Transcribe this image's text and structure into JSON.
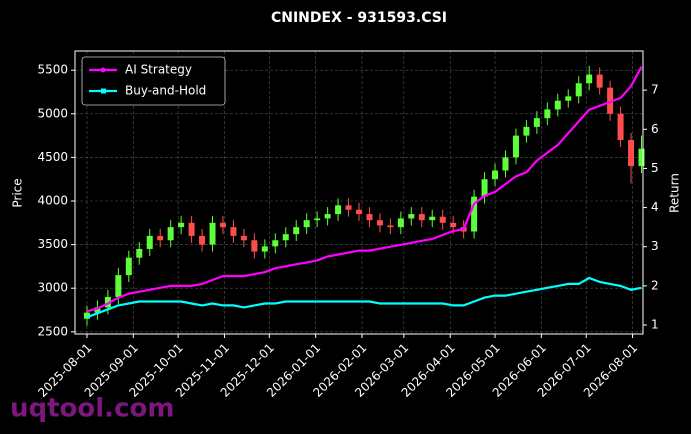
{
  "chart_data": {
    "type": "candlestick",
    "title": "CNINDEX - 931593.CSI",
    "ylabel": "Price",
    "y2label": "Return",
    "x": [
      "2025-08-01",
      "2025-08-08",
      "2025-08-15",
      "2025-08-22",
      "2025-08-29",
      "2025-09-05",
      "2025-09-12",
      "2025-09-19",
      "2025-09-26",
      "2025-10-03",
      "2025-10-10",
      "2025-10-17",
      "2025-10-24",
      "2025-10-31",
      "2025-11-07",
      "2025-11-14",
      "2025-11-21",
      "2025-11-28",
      "2025-12-05",
      "2025-12-12",
      "2025-12-19",
      "2025-12-26",
      "2026-01-02",
      "2026-01-09",
      "2026-01-16",
      "2026-01-23",
      "2026-01-30",
      "2026-02-06",
      "2026-02-13",
      "2026-02-20",
      "2026-02-27",
      "2026-03-06",
      "2026-03-13",
      "2026-03-20",
      "2026-03-27",
      "2026-04-03",
      "2026-04-10",
      "2026-04-17",
      "2026-04-24",
      "2026-05-01",
      "2026-05-08",
      "2026-05-15",
      "2026-05-22",
      "2026-05-29",
      "2026-06-05",
      "2026-06-12",
      "2026-06-19",
      "2026-06-26",
      "2026-07-03",
      "2026-07-10",
      "2026-07-17",
      "2026-07-24",
      "2026-07-31",
      "2026-08-07"
    ],
    "open": [
      2650,
      2720,
      2780,
      2900,
      3150,
      3350,
      3450,
      3600,
      3550,
      3700,
      3750,
      3600,
      3500,
      3750,
      3700,
      3600,
      3550,
      3420,
      3480,
      3550,
      3620,
      3700,
      3780,
      3800,
      3850,
      3950,
      3900,
      3850,
      3780,
      3720,
      3700,
      3800,
      3850,
      3780,
      3820,
      3750,
      3700,
      3650,
      4050,
      4250,
      4350,
      4500,
      4750,
      4850,
      4950,
      5050,
      5150,
      5200,
      5350,
      5450,
      5300,
      5000,
      4700,
      4400
    ],
    "high": [
      2800,
      2860,
      2980,
      3230,
      3430,
      3530,
      3680,
      3680,
      3780,
      3830,
      3830,
      3680,
      3830,
      3830,
      3780,
      3680,
      3630,
      3560,
      3630,
      3700,
      3780,
      3860,
      3880,
      3930,
      4030,
      4030,
      3980,
      3930,
      3860,
      3800,
      3880,
      3930,
      3930,
      3900,
      3900,
      3830,
      3780,
      4130,
      4330,
      4430,
      4580,
      4830,
      4930,
      5030,
      5130,
      5230,
      5280,
      5430,
      5550,
      5530,
      5380,
      5080,
      4780,
      4750
    ],
    "low": [
      2570,
      2640,
      2700,
      2820,
      3070,
      3270,
      3370,
      3470,
      3470,
      3620,
      3520,
      3420,
      3420,
      3620,
      3520,
      3470,
      3340,
      3340,
      3400,
      3470,
      3540,
      3620,
      3700,
      3720,
      3770,
      3820,
      3770,
      3700,
      3640,
      3620,
      3620,
      3720,
      3700,
      3700,
      3670,
      3620,
      3570,
      3570,
      3970,
      4170,
      4270,
      4420,
      4670,
      4770,
      4870,
      4970,
      5070,
      5120,
      5270,
      5220,
      4920,
      4620,
      4200,
      4320
    ],
    "close": [
      2720,
      2780,
      2900,
      3150,
      3350,
      3450,
      3600,
      3550,
      3700,
      3750,
      3600,
      3500,
      3750,
      3700,
      3600,
      3550,
      3420,
      3480,
      3550,
      3620,
      3700,
      3780,
      3800,
      3850,
      3950,
      3900,
      3850,
      3780,
      3720,
      3700,
      3800,
      3850,
      3780,
      3820,
      3750,
      3700,
      3650,
      4050,
      4250,
      4350,
      4500,
      4750,
      4850,
      4950,
      5050,
      5150,
      5200,
      5350,
      5450,
      5300,
      5000,
      4700,
      4400,
      4600
    ],
    "up_color": "#5cff3a",
    "down_color": "#ff4d4d",
    "series": [
      {
        "name": "AI Strategy",
        "color": "#ff00ff",
        "axis": "y2",
        "values": [
          1.35,
          1.42,
          1.55,
          1.7,
          1.8,
          1.85,
          1.9,
          1.95,
          2.0,
          2.0,
          2.0,
          2.05,
          2.15,
          2.25,
          2.25,
          2.25,
          2.3,
          2.35,
          2.45,
          2.5,
          2.55,
          2.6,
          2.65,
          2.75,
          2.8,
          2.85,
          2.9,
          2.9,
          2.95,
          3.0,
          3.05,
          3.1,
          3.15,
          3.2,
          3.3,
          3.4,
          3.45,
          4.1,
          4.3,
          4.4,
          4.6,
          4.8,
          4.9,
          5.2,
          5.4,
          5.6,
          5.9,
          6.2,
          6.5,
          6.6,
          6.7,
          6.8,
          7.1,
          7.6
        ]
      },
      {
        "name": "Buy-and-Hold",
        "color": "#00ffff",
        "axis": "y2",
        "values": [
          1.2,
          1.3,
          1.4,
          1.5,
          1.55,
          1.6,
          1.6,
          1.6,
          1.6,
          1.6,
          1.55,
          1.5,
          1.55,
          1.5,
          1.5,
          1.45,
          1.5,
          1.55,
          1.55,
          1.6,
          1.6,
          1.6,
          1.6,
          1.6,
          1.6,
          1.6,
          1.6,
          1.6,
          1.55,
          1.55,
          1.55,
          1.55,
          1.55,
          1.55,
          1.55,
          1.5,
          1.5,
          1.6,
          1.7,
          1.75,
          1.75,
          1.8,
          1.85,
          1.9,
          1.95,
          2.0,
          2.05,
          2.05,
          2.2,
          2.1,
          2.05,
          2.0,
          1.9,
          1.95
        ]
      }
    ],
    "xlim": [
      "2025-07-24",
      "2026-08-08"
    ],
    "xticks": [
      "2025-08-01",
      "2025-09-01",
      "2025-10-01",
      "2025-11-01",
      "2025-12-01",
      "2026-01-01",
      "2026-02-01",
      "2026-03-01",
      "2026-04-01",
      "2026-05-01",
      "2026-06-01",
      "2026-07-01",
      "2026-08-01"
    ],
    "ylim": [
      2475,
      5720
    ],
    "yticks": [
      2500,
      3000,
      3500,
      4000,
      4500,
      5000,
      5500
    ],
    "y2lim": [
      0.77,
      8.0
    ],
    "y2ticks": [
      1,
      2,
      3,
      4,
      5,
      6,
      7
    ],
    "grid": true,
    "legend": "upper left"
  },
  "watermark": "uqtool.com"
}
